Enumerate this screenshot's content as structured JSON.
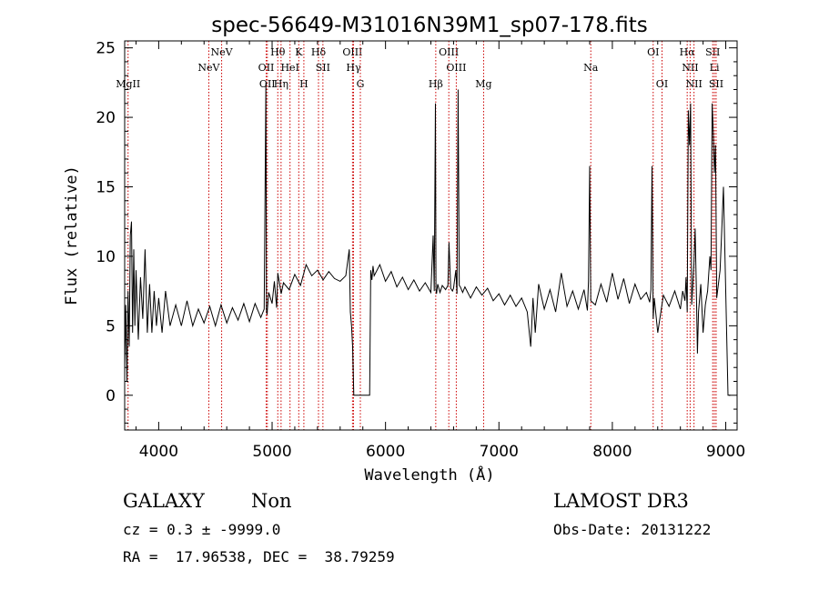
{
  "chart_data": {
    "type": "line",
    "title": "spec-56649-M31016N39M1_sp07-178.fits",
    "xlabel": "Wavelength (Å)",
    "ylabel": "Flux (relative)",
    "xlim": [
      3700,
      9100
    ],
    "ylim": [
      -2.5,
      25.5
    ],
    "xticks": [
      4000,
      5000,
      6000,
      7000,
      8000,
      9000
    ],
    "yticks": [
      0,
      5,
      10,
      15,
      20,
      25
    ],
    "grid": false,
    "series": [
      {
        "name": "flux",
        "x": [
          3700,
          3710,
          3720,
          3730,
          3740,
          3750,
          3760,
          3770,
          3780,
          3790,
          3800,
          3820,
          3840,
          3860,
          3880,
          3900,
          3920,
          3940,
          3960,
          3980,
          4000,
          4030,
          4060,
          4100,
          4150,
          4200,
          4250,
          4300,
          4350,
          4400,
          4450,
          4500,
          4550,
          4600,
          4650,
          4700,
          4750,
          4800,
          4850,
          4900,
          4930,
          4945,
          4950,
          4955,
          4970,
          5000,
          5020,
          5040,
          5050,
          5080,
          5100,
          5150,
          5200,
          5250,
          5300,
          5350,
          5400,
          5450,
          5500,
          5550,
          5600,
          5650,
          5680,
          5690,
          5700,
          5710,
          5720,
          5740,
          5760,
          5780,
          5800,
          5850,
          5860,
          5870,
          5880,
          5890,
          5900,
          5950,
          6000,
          6050,
          6100,
          6150,
          6200,
          6250,
          6300,
          6350,
          6400,
          6420,
          6430,
          6440,
          6445,
          6450,
          6460,
          6480,
          6500,
          6530,
          6550,
          6560,
          6575,
          6590,
          6600,
          6620,
          6630,
          6640,
          6650,
          6660,
          6680,
          6700,
          6750,
          6800,
          6850,
          6900,
          6950,
          7000,
          7050,
          7100,
          7150,
          7200,
          7250,
          7280,
          7300,
          7320,
          7350,
          7400,
          7450,
          7500,
          7550,
          7600,
          7650,
          7700,
          7750,
          7780,
          7790,
          7800,
          7810,
          7850,
          7900,
          7950,
          8000,
          8050,
          8100,
          8150,
          8200,
          8250,
          8300,
          8330,
          8340,
          8350,
          8360,
          8370,
          8400,
          8450,
          8500,
          8550,
          8600,
          8620,
          8640,
          8650,
          8660,
          8670,
          8680,
          8690,
          8700,
          8720,
          8730,
          8740,
          8750,
          8760,
          8780,
          8800,
          8820,
          8840,
          8860,
          8870,
          8880,
          8890,
          8900,
          8910,
          8920,
          8950,
          8960,
          8980,
          9000,
          9020,
          9040
        ],
        "values": [
          2.0,
          6.5,
          1.0,
          7.5,
          3.5,
          11.5,
          12.5,
          4.5,
          10.5,
          5.0,
          9.0,
          4.0,
          8.5,
          5.5,
          10.5,
          4.5,
          8.0,
          4.5,
          7.5,
          5.0,
          7.0,
          4.5,
          7.5,
          5.0,
          6.5,
          5.0,
          6.8,
          5.0,
          6.2,
          5.2,
          6.4,
          5.0,
          6.5,
          5.2,
          6.3,
          5.4,
          6.6,
          5.3,
          6.6,
          5.6,
          6.2,
          22.5,
          6.2,
          5.8,
          7.4,
          6.6,
          8.2,
          6.3,
          8.8,
          7.3,
          8.1,
          7.6,
          8.7,
          7.9,
          9.4,
          8.6,
          9.0,
          8.3,
          8.9,
          8.4,
          8.2,
          8.6,
          10.5,
          6.0,
          5.0,
          3.5,
          0.0,
          0.0,
          0.0,
          0.0,
          0.0,
          0.0,
          0.0,
          9.0,
          8.3,
          9.3,
          8.6,
          9.4,
          8.2,
          8.9,
          7.8,
          8.5,
          7.6,
          8.3,
          7.5,
          8.1,
          7.4,
          11.5,
          7.5,
          21.0,
          7.6,
          7.3,
          8.0,
          7.4,
          7.9,
          7.6,
          7.9,
          11.0,
          7.7,
          7.5,
          7.7,
          9.0,
          7.3,
          22.0,
          7.9,
          7.8,
          7.4,
          7.8,
          7.0,
          7.8,
          7.2,
          7.7,
          6.8,
          7.3,
          6.5,
          7.2,
          6.4,
          7.0,
          6.0,
          3.5,
          7.0,
          4.5,
          8.0,
          6.2,
          7.6,
          6.0,
          8.8,
          6.4,
          7.5,
          6.2,
          7.6,
          6.1,
          8.2,
          16.5,
          6.8,
          6.5,
          8.0,
          6.7,
          8.8,
          6.9,
          8.4,
          6.6,
          8.0,
          6.9,
          7.4,
          6.7,
          7.6,
          16.5,
          5.5,
          7.0,
          4.5,
          7.2,
          6.4,
          7.5,
          6.2,
          7.5,
          6.8,
          8.5,
          6.0,
          20.5,
          18.0,
          21.0,
          6.5,
          9.5,
          12.0,
          8.0,
          3.0,
          6.0,
          8.0,
          4.5,
          6.5,
          7.5,
          10.0,
          9.0,
          21.0,
          19.0,
          16.0,
          18.0,
          7.0,
          9.0,
          11.0,
          15.0,
          7.5,
          0.0,
          0.0
        ]
      }
    ],
    "lines": [
      {
        "label": "MgII",
        "x": 3730,
        "row": 3
      },
      {
        "label": "NeV",
        "x": 4442,
        "row": 2
      },
      {
        "label": "NeV",
        "x": 4555,
        "row": 1
      },
      {
        "label": "OII",
        "x": 4948,
        "row": 2
      },
      {
        "label": "OII",
        "x": 4958,
        "row": 3
      },
      {
        "label": "Hθ",
        "x": 5050,
        "row": 1
      },
      {
        "label": "Hη",
        "x": 5079,
        "row": 3
      },
      {
        "label": "HeI",
        "x": 5158,
        "row": 2
      },
      {
        "label": "K",
        "x": 5235,
        "row": 1
      },
      {
        "label": "H",
        "x": 5280,
        "row": 3
      },
      {
        "label": "Hδ",
        "x": 5409,
        "row": 1
      },
      {
        "label": "SII",
        "x": 5448,
        "row": 2
      },
      {
        "label": "OIII",
        "x": 5709,
        "row": 1
      },
      {
        "label": "Hγ",
        "x": 5718,
        "row": 2
      },
      {
        "label": "G",
        "x": 5778,
        "row": 3
      },
      {
        "label": "Hβ",
        "x": 6443,
        "row": 3
      },
      {
        "label": "OIII",
        "x": 6558,
        "row": 1
      },
      {
        "label": "OIII",
        "x": 6624,
        "row": 2
      },
      {
        "label": "Mg",
        "x": 6865,
        "row": 3
      },
      {
        "label": "Na",
        "x": 7810,
        "row": 2
      },
      {
        "label": "OI",
        "x": 8360,
        "row": 1
      },
      {
        "label": "OI",
        "x": 8438,
        "row": 3
      },
      {
        "label": "Hα",
        "x": 8660,
        "row": 1
      },
      {
        "label": "NII",
        "x": 8686,
        "row": 2
      },
      {
        "label": "NII",
        "x": 8720,
        "row": 3
      },
      {
        "label": "SII",
        "x": 8885,
        "row": 1
      },
      {
        "label": "Li",
        "x": 8900,
        "row": 2
      },
      {
        "label": "SII",
        "x": 8915,
        "row": 3
      }
    ]
  },
  "info": {
    "class": "GALAXY",
    "subclass": "Non",
    "survey": "LAMOST DR3",
    "cz": "cz = 0.3 ± -9999.0",
    "obs_date": "Obs-Date: 20131222",
    "coords": "RA =  17.96538, DEC =  38.79259"
  }
}
